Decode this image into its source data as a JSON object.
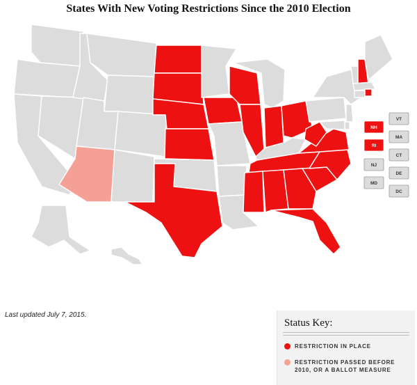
{
  "title": "States With New Voting Restrictions Since the 2010 Election",
  "updated": "Last updated July 7, 2015.",
  "colors": {
    "none": "#dcdcdc",
    "in_place": "#ee1111",
    "before_2010": "#f4a095",
    "border": "#ffffff"
  },
  "key": {
    "title": "Status Key:",
    "items": [
      {
        "label": "RESTRICTION IN PLACE",
        "color": "#ee1111"
      },
      {
        "label": "RESTRICTION PASSED BEFORE 2010, OR A BALLOT MEASURE",
        "color": "#f4a095"
      }
    ]
  },
  "small_states": [
    {
      "abbr": "VT",
      "status": "none"
    },
    {
      "abbr": "NH",
      "status": "in_place"
    },
    {
      "abbr": "MA",
      "status": "none"
    },
    {
      "abbr": "RI",
      "status": "in_place"
    },
    {
      "abbr": "CT",
      "status": "none"
    },
    {
      "abbr": "NJ",
      "status": "none"
    },
    {
      "abbr": "DE",
      "status": "none"
    },
    {
      "abbr": "MD",
      "status": "none"
    },
    {
      "abbr": "DC",
      "status": "none"
    }
  ],
  "states": {
    "WA": "none",
    "OR": "none",
    "CA": "none",
    "NV": "none",
    "ID": "none",
    "MT": "none",
    "WY": "none",
    "UT": "none",
    "AZ": "before_2010",
    "CO": "none",
    "NM": "none",
    "ND": "in_place",
    "SD": "in_place",
    "NE": "in_place",
    "KS": "in_place",
    "OK": "none",
    "TX": "in_place",
    "MN": "none",
    "IA": "in_place",
    "MO": "none",
    "AR": "none",
    "LA": "none",
    "WI": "in_place",
    "IL": "in_place",
    "MI": "none",
    "IN": "in_place",
    "OH": "in_place",
    "KY": "none",
    "TN": "in_place",
    "MS": "in_place",
    "AL": "in_place",
    "GA": "in_place",
    "FL": "in_place",
    "SC": "in_place",
    "NC": "in_place",
    "VA": "in_place",
    "WV": "in_place",
    "PA": "none",
    "NY": "none",
    "ME": "none",
    "VT": "none",
    "NH": "in_place",
    "MA": "none",
    "RI": "in_place",
    "CT": "none",
    "NJ": "none",
    "DE": "none",
    "MD": "none",
    "AK": "none",
    "HI": "none"
  }
}
